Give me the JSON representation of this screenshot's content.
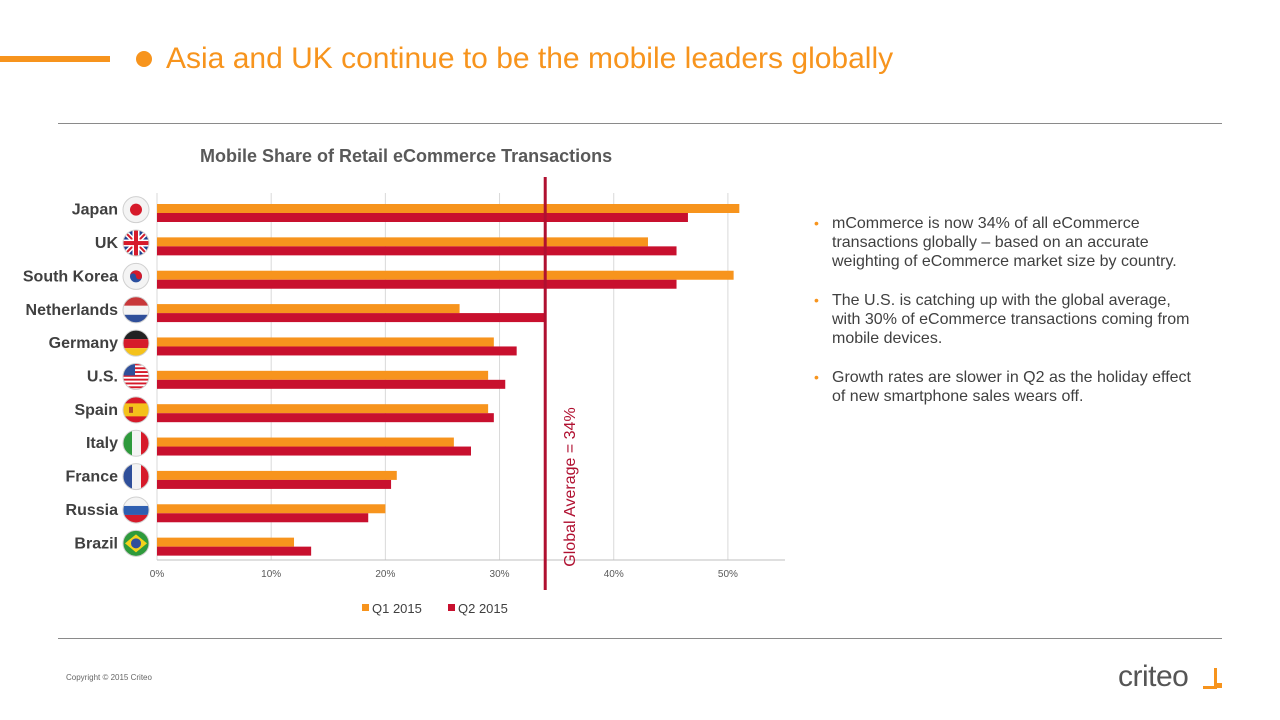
{
  "slide": {
    "title": "Asia and UK continue to be the mobile leaders globally",
    "copyright": "Copyright © 2015 Criteo",
    "logo_text": "criteo",
    "accent_color": "#F7941D"
  },
  "bullets": [
    "mCommerce is now 34% of all eCommerce transactions globally – based on an accurate weighting of eCommerce market size by country.",
    "The U.S. is catching up with the global average, with 30% of eCommerce transactions coming from mobile devices.",
    "Growth rates are slower in Q2 as the holiday effect of new smartphone sales wears off."
  ],
  "chart_data": {
    "type": "bar",
    "orientation": "horizontal",
    "title": "Mobile Share of Retail eCommerce Transactions",
    "categories": [
      "Japan",
      "UK",
      "South Korea",
      "Netherlands",
      "Germany",
      "U.S.",
      "Spain",
      "Italy",
      "France",
      "Russia",
      "Brazil"
    ],
    "series": [
      {
        "name": "Q1 2015",
        "color": "#F7941D",
        "values": [
          51,
          43,
          50.5,
          26.5,
          29.5,
          29,
          29,
          26,
          21,
          20,
          12
        ]
      },
      {
        "name": "Q2 2015",
        "color": "#C8102E",
        "values": [
          46.5,
          45.5,
          45.5,
          34,
          31.5,
          30.5,
          29.5,
          27.5,
          20.5,
          18.5,
          13.5
        ]
      }
    ],
    "xlim": [
      0,
      55
    ],
    "ticks": [
      "0%",
      "10%",
      "20%",
      "30%",
      "40%",
      "50%"
    ],
    "tick_values": [
      0,
      10,
      20,
      30,
      40,
      50
    ],
    "grid": true,
    "legend": "bottom",
    "reference_line": {
      "value": 34,
      "label": "Global Average = 34%",
      "color": "#B01030"
    },
    "flag_icons": [
      "japan-flag-icon",
      "uk-flag-icon",
      "south-korea-flag-icon",
      "netherlands-flag-icon",
      "germany-flag-icon",
      "us-flag-icon",
      "spain-flag-icon",
      "italy-flag-icon",
      "france-flag-icon",
      "russia-flag-icon",
      "brazil-flag-icon"
    ]
  }
}
